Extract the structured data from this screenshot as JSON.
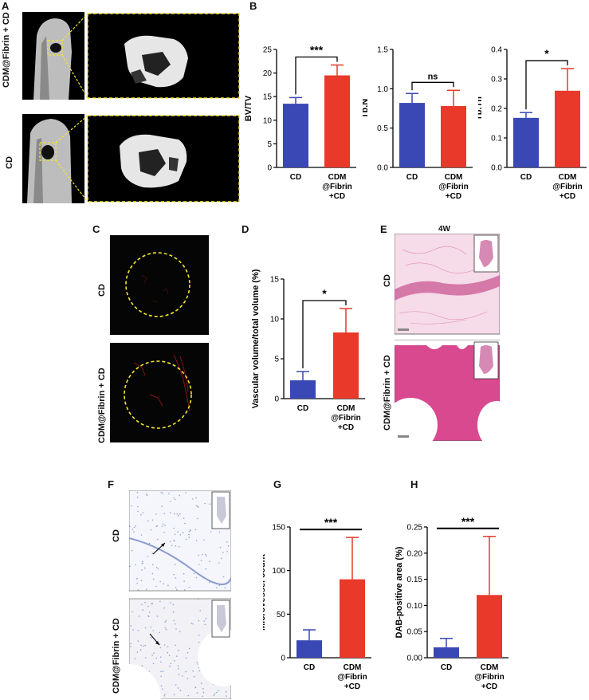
{
  "panels": {
    "A": {
      "letter": "A",
      "rows": [
        "CDM@Fibrin + CD",
        "CD"
      ]
    },
    "B": {
      "letter": "B"
    },
    "C": {
      "letter": "C",
      "rows": [
        "CD",
        "CDM@Fibrin + CD"
      ]
    },
    "D": {
      "letter": "D"
    },
    "E": {
      "letter": "E",
      "title": "4W",
      "rows": [
        "CD",
        "CDM@Fibrin + CD"
      ]
    },
    "F": {
      "letter": "F",
      "rows": [
        "CD",
        "CDM@Fibrin + CD"
      ]
    },
    "G": {
      "letter": "G"
    },
    "H": {
      "letter": "H"
    }
  },
  "colors": {
    "cd": "#3a48b5",
    "cdm": "#e8392b",
    "highlight": "#f5e62b"
  },
  "chart_data": [
    {
      "id": "B1",
      "type": "bar",
      "ylabel": "BV/TV",
      "categories": [
        "CD",
        "CDM\n@Fibrin\n+CD"
      ],
      "values": [
        13.5,
        19.5
      ],
      "errors": [
        1.3,
        2.2
      ],
      "ylim": [
        0,
        25
      ],
      "yticks": [
        0,
        5,
        10,
        15,
        20,
        25
      ],
      "significance": "***",
      "sig_style": "bracket"
    },
    {
      "id": "B2",
      "type": "bar",
      "ylabel": "Tb.N",
      "categories": [
        "CD",
        "CDM\n@Fibrin\n+CD"
      ],
      "values": [
        0.82,
        0.78
      ],
      "errors": [
        0.12,
        0.2
      ],
      "ylim": [
        0,
        1.5
      ],
      "yticks": [
        "0.0",
        "0.5",
        "1.0",
        "1.5"
      ],
      "significance": "ns",
      "sig_style": "bracket"
    },
    {
      "id": "B3",
      "type": "bar",
      "ylabel": "Tb.Th",
      "categories": [
        "CD",
        "CDM\n@Fibrin\n+CD"
      ],
      "values": [
        0.168,
        0.26
      ],
      "errors": [
        0.018,
        0.075
      ],
      "ylim": [
        0,
        0.4
      ],
      "yticks": [
        "0.0",
        "0.1",
        "0.2",
        "0.3",
        "0.4"
      ],
      "significance": "*",
      "sig_style": "bracket"
    },
    {
      "id": "D",
      "type": "bar",
      "ylabel": "Vascular volume/total volume  (%)",
      "categories": [
        "CD",
        "CDM\n@Fibrin\n+CD"
      ],
      "values": [
        2.3,
        8.3
      ],
      "errors": [
        1.1,
        3.0
      ],
      "ylim": [
        0,
        15
      ],
      "yticks": [
        0,
        5,
        10,
        15
      ],
      "significance": "*",
      "sig_style": "bracket"
    },
    {
      "id": "G",
      "type": "bar",
      "ylabel": "Microvessel count",
      "categories": [
        "CD",
        "CDM\n@Fibrin\n+CD"
      ],
      "values": [
        20,
        90
      ],
      "errors": [
        12,
        48
      ],
      "ylim": [
        0,
        150
      ],
      "yticks": [
        0,
        50,
        100,
        150
      ],
      "significance": "***",
      "sig_style": "line"
    },
    {
      "id": "H",
      "type": "bar",
      "ylabel": "DAB-positive area (%)",
      "categories": [
        "CD",
        "CDM\n@Fibrin\n+CD"
      ],
      "values": [
        0.02,
        0.12
      ],
      "errors": [
        0.017,
        0.112
      ],
      "ylim": [
        0,
        0.25
      ],
      "yticks": [
        "0.00",
        "0.05",
        "0.10",
        "0.15",
        "0.20",
        "0.25"
      ],
      "significance": "***",
      "sig_style": "line"
    }
  ]
}
